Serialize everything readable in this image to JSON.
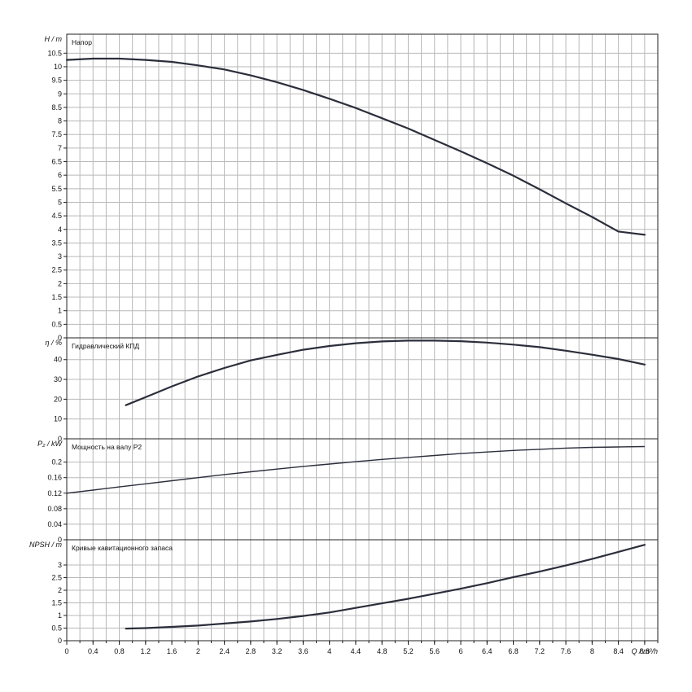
{
  "chart_data": {
    "type": "line",
    "x": {
      "label": "Q / m³/h",
      "range": [
        0,
        9.0
      ],
      "ticks": [
        "0",
        "0.4",
        "0.8",
        "1.2",
        "1.6",
        "2",
        "2.4",
        "2.8",
        "3.2",
        "3.6",
        "4",
        "4.4",
        "4.8",
        "5.2",
        "5.6",
        "6",
        "6.4",
        "6.8",
        "7.2",
        "7.6",
        "8",
        "8.4",
        "8.8"
      ]
    },
    "panels": [
      {
        "id": "head",
        "title": "Напор",
        "ylabel": "H / m",
        "ylim": [
          0,
          11.2
        ],
        "yticks": [
          "0",
          "0.5",
          "1",
          "1.5",
          "2",
          "2.5",
          "3",
          "3.5",
          "4",
          "4.5",
          "5",
          "5.5",
          "6",
          "6.5",
          "7",
          "7.5",
          "8",
          "8.5",
          "9",
          "9.5",
          "10",
          "10.5"
        ],
        "series": [
          {
            "x": [
              0,
              0.4,
              0.8,
              1.2,
              1.6,
              2.0,
              2.4,
              2.8,
              3.2,
              3.6,
              4.0,
              4.4,
              4.8,
              5.2,
              5.6,
              6.0,
              6.4,
              6.8,
              7.2,
              7.6,
              8.0,
              8.4,
              8.8
            ],
            "y": [
              10.25,
              10.3,
              10.3,
              10.25,
              10.18,
              10.05,
              9.9,
              9.68,
              9.43,
              9.14,
              8.82,
              8.48,
              8.1,
              7.72,
              7.3,
              6.88,
              6.44,
              5.98,
              5.48,
              4.96,
              4.46,
              3.92,
              3.8
            ]
          }
        ]
      },
      {
        "id": "efficiency",
        "title": "Гидравлический КПД",
        "ylabel": "η / %",
        "ylim": [
          0,
          51
        ],
        "yticks": [
          "0",
          "10",
          "20",
          "30",
          "40"
        ],
        "series": [
          {
            "x": [
              0.9,
              1.2,
              1.6,
              2.0,
              2.4,
              2.8,
              3.2,
              3.6,
              4.0,
              4.4,
              4.8,
              5.2,
              5.6,
              6.0,
              6.4,
              6.8,
              7.2,
              7.6,
              8.0,
              8.4,
              8.8
            ],
            "y": [
              17,
              21,
              26.5,
              31.5,
              35.8,
              39.6,
              42.4,
              45,
              46.9,
              48.3,
              49.2,
              49.6,
              49.6,
              49.3,
              48.6,
              47.6,
              46.3,
              44.5,
              42.5,
              40.3,
              37.5
            ]
          }
        ]
      },
      {
        "id": "power",
        "title": "Мощность на валу P2",
        "ylabel": "P₂ / kW",
        "ylim": [
          0,
          0.26
        ],
        "yticks": [
          "0",
          "0.04",
          "0.08",
          "0.12",
          "0.16",
          "0.2"
        ],
        "series": [
          {
            "x": [
              0,
              0.4,
              0.8,
              1.2,
              1.6,
              2.0,
              2.4,
              2.8,
              3.2,
              3.6,
              4.0,
              4.4,
              4.8,
              5.2,
              5.6,
              6.0,
              6.4,
              6.8,
              7.2,
              7.6,
              8.0,
              8.4,
              8.8
            ],
            "y": [
              0.12,
              0.128,
              0.136,
              0.144,
              0.152,
              0.16,
              0.168,
              0.175,
              0.182,
              0.189,
              0.195,
              0.201,
              0.207,
              0.212,
              0.217,
              0.222,
              0.226,
              0.23,
              0.233,
              0.236,
              0.238,
              0.239,
              0.24
            ]
          }
        ]
      },
      {
        "id": "npsh",
        "title": "Кривые кавитационного запаса",
        "ylabel": "NPSH / m",
        "ylim": [
          0,
          4.0
        ],
        "yticks": [
          "0",
          "0.5",
          "1",
          "1.5",
          "2",
          "2.5",
          "3"
        ],
        "series": [
          {
            "x": [
              0.9,
              1.2,
              1.6,
              2.0,
              2.4,
              2.8,
              3.2,
              3.6,
              4.0,
              4.4,
              4.8,
              5.2,
              5.6,
              6.0,
              6.4,
              6.8,
              7.2,
              7.6,
              8.0,
              8.4,
              8.8
            ],
            "y": [
              0.48,
              0.5,
              0.55,
              0.6,
              0.68,
              0.76,
              0.86,
              0.98,
              1.12,
              1.3,
              1.48,
              1.66,
              1.86,
              2.06,
              2.28,
              2.52,
              2.74,
              2.98,
              3.24,
              3.52,
              3.8
            ]
          }
        ]
      }
    ]
  }
}
